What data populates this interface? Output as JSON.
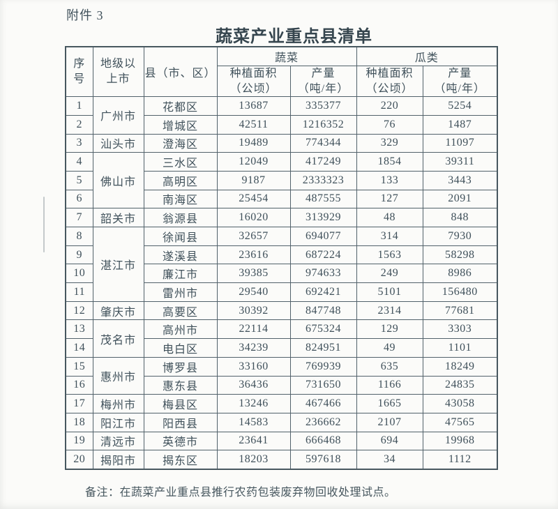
{
  "page": {
    "attachment": "附件 3",
    "title": "蔬菜产业重点县清单",
    "note": "备注：在蔬菜产业重点县推行农药包装废弃物回收处理试点。"
  },
  "table": {
    "header": {
      "no": "序号",
      "city": "地级以上市",
      "county": "县（市、区）",
      "vegetable_group": "蔬菜",
      "melon_group": "瓜类",
      "area_line1": "种植面积",
      "area_line2": "（公顷）",
      "yield_line1": "产量",
      "yield_line2": "（吨/年）"
    },
    "rows": [
      {
        "no": "1",
        "city": "广州市",
        "city_rowspan": 2,
        "county": "花都区",
        "veg_area": "13687",
        "veg_yield": "335377",
        "melon_area": "220",
        "melon_yield": "5254"
      },
      {
        "no": "2",
        "county": "增城区",
        "veg_area": "42511",
        "veg_yield": "1216352",
        "melon_area": "76",
        "melon_yield": "1487"
      },
      {
        "no": "3",
        "city": "汕头市",
        "city_rowspan": 1,
        "county": "澄海区",
        "veg_area": "19489",
        "veg_yield": "774344",
        "melon_area": "329",
        "melon_yield": "11097"
      },
      {
        "no": "4",
        "city": "佛山市",
        "city_rowspan": 3,
        "county": "三水区",
        "veg_area": "12049",
        "veg_yield": "417249",
        "melon_area": "1854",
        "melon_yield": "39311"
      },
      {
        "no": "5",
        "county": "高明区",
        "veg_area": "9187",
        "veg_yield": "2333323",
        "melon_area": "133",
        "melon_yield": "3443"
      },
      {
        "no": "6",
        "county": "南海区",
        "veg_area": "25454",
        "veg_yield": "487555",
        "melon_area": "127",
        "melon_yield": "2091"
      },
      {
        "no": "7",
        "city": "韶关市",
        "city_rowspan": 1,
        "county": "翁源县",
        "veg_area": "16020",
        "veg_yield": "313929",
        "melon_area": "48",
        "melon_yield": "848"
      },
      {
        "no": "8",
        "city": "湛江市",
        "city_rowspan": 4,
        "county": "徐闻县",
        "veg_area": "32657",
        "veg_yield": "694077",
        "melon_area": "314",
        "melon_yield": "7930"
      },
      {
        "no": "9",
        "county": "遂溪县",
        "veg_area": "23616",
        "veg_yield": "687224",
        "melon_area": "1563",
        "melon_yield": "58298"
      },
      {
        "no": "10",
        "county": "廉江市",
        "veg_area": "39385",
        "veg_yield": "974633",
        "melon_area": "249",
        "melon_yield": "8986"
      },
      {
        "no": "11",
        "county": "雷州市",
        "veg_area": "29540",
        "veg_yield": "692421",
        "melon_area": "5101",
        "melon_yield": "156480"
      },
      {
        "no": "12",
        "city": "肇庆市",
        "city_rowspan": 1,
        "county": "高要区",
        "veg_area": "30392",
        "veg_yield": "847748",
        "melon_area": "2314",
        "melon_yield": "77681"
      },
      {
        "no": "13",
        "city": "茂名市",
        "city_rowspan": 2,
        "county": "高州市",
        "veg_area": "22114",
        "veg_yield": "675324",
        "melon_area": "129",
        "melon_yield": "3303"
      },
      {
        "no": "14",
        "county": "电白区",
        "veg_area": "34239",
        "veg_yield": "824951",
        "melon_area": "49",
        "melon_yield": "1101"
      },
      {
        "no": "15",
        "city": "惠州市",
        "city_rowspan": 2,
        "county": "博罗县",
        "veg_area": "33160",
        "veg_yield": "769939",
        "melon_area": "635",
        "melon_yield": "18249"
      },
      {
        "no": "16",
        "county": "惠东县",
        "veg_area": "36436",
        "veg_yield": "731650",
        "melon_area": "1166",
        "melon_yield": "24835"
      },
      {
        "no": "17",
        "city": "梅州市",
        "city_rowspan": 1,
        "county": "梅县区",
        "veg_area": "13246",
        "veg_yield": "467466",
        "melon_area": "1665",
        "melon_yield": "43058"
      },
      {
        "no": "18",
        "city": "阳江市",
        "city_rowspan": 1,
        "county": "阳西县",
        "veg_area": "14583",
        "veg_yield": "236662",
        "melon_area": "2107",
        "melon_yield": "47565"
      },
      {
        "no": "19",
        "city": "清远市",
        "city_rowspan": 1,
        "county": "英德市",
        "veg_area": "23641",
        "veg_yield": "666468",
        "melon_area": "694",
        "melon_yield": "19968"
      },
      {
        "no": "20",
        "city": "揭阳市",
        "city_rowspan": 1,
        "county": "揭东区",
        "veg_area": "18203",
        "veg_yield": "597618",
        "melon_area": "34",
        "melon_yield": "1112"
      }
    ]
  },
  "colors": {
    "ink": "#3f505a",
    "border": "#51616a",
    "paper": "#fbfbf9"
  }
}
